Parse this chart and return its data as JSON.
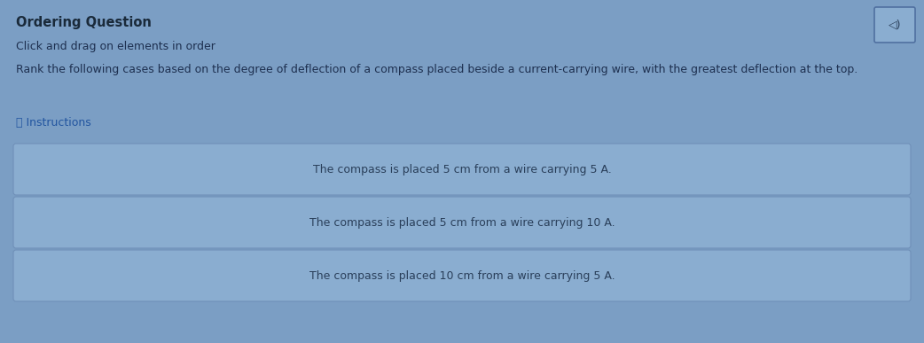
{
  "title": "Ordering Question",
  "subtitle": "Click and drag on elements in order",
  "question": "Rank the following cases based on the degree of deflection of a compass placed beside a current-carrying wire, with the greatest deflection at the top.",
  "instructions_label": "ⓘ Instructions",
  "items": [
    "The compass is placed 5 cm from a wire carrying 5 A.",
    "The compass is placed 5 cm from a wire carrying 10 A.",
    "The compass is placed 10 cm from a wire carrying 5 A."
  ],
  "bg_color": "#7b9ec4",
  "card_bg_color": "#8aadd0",
  "card_border_color": "#7090b8",
  "card_text_color": "#2a3f5a",
  "title_color": "#1a2a3a",
  "subtitle_color": "#1e3050",
  "question_color": "#1e3050",
  "instructions_color": "#2255a0",
  "speaker_box_bg": "#8aadd0",
  "speaker_box_border": "#5070a0",
  "speaker_icon_color": "#2a3f5a",
  "fig_width": 10.42,
  "fig_height": 3.87,
  "dpi": 100
}
